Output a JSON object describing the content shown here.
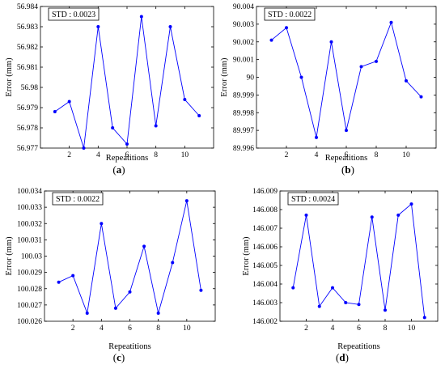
{
  "chart_data": [
    {
      "type": "line",
      "panel_label": "a",
      "annotation": "STD : 0.0023",
      "ylabel": "Error (mm)",
      "xlabel": "Repeatitions",
      "color": "#0000ff",
      "x": [
        1,
        2,
        3,
        4,
        5,
        6,
        7,
        8,
        9,
        10,
        11
      ],
      "y": [
        56.9788,
        56.9793,
        56.977,
        56.983,
        56.978,
        56.9772,
        56.9835,
        56.9781,
        56.983,
        56.9794,
        56.9786
      ],
      "xlim": [
        0,
        12
      ],
      "ylim": [
        56.977,
        56.984
      ],
      "xticks": [
        2,
        4,
        6,
        8,
        10
      ],
      "yticks": [
        56.977,
        56.978,
        56.979,
        56.98,
        56.981,
        56.982,
        56.983,
        56.984
      ],
      "ytick_labels": [
        "56.977",
        "56.978",
        "56.979",
        "56.98",
        "56.981",
        "56.982",
        "56.983",
        "56.984"
      ]
    },
    {
      "type": "line",
      "panel_label": "b",
      "annotation": "STD : 0.0022",
      "ylabel": "Error (mm)",
      "xlabel": "Repeatitions",
      "color": "#0000ff",
      "x": [
        1,
        2,
        3,
        4,
        5,
        6,
        7,
        8,
        9,
        10,
        11
      ],
      "y": [
        90.0021,
        90.0028,
        90.0,
        89.9966,
        90.002,
        89.997,
        90.0006,
        90.0009,
        90.0031,
        89.9998,
        89.9989
      ],
      "xlim": [
        0,
        12
      ],
      "ylim": [
        89.996,
        90.004
      ],
      "xticks": [
        2,
        4,
        6,
        8,
        10
      ],
      "yticks": [
        89.996,
        89.997,
        89.998,
        89.999,
        90.0,
        90.001,
        90.002,
        90.003,
        90.004
      ],
      "ytick_labels": [
        "89.996",
        "89.997",
        "89.998",
        "89.999",
        "90",
        "90.001",
        "90.002",
        "90.003",
        "90.004"
      ]
    },
    {
      "type": "line",
      "panel_label": "c",
      "annotation": "STD : 0.0022",
      "ylabel": "Error (mm)",
      "xlabel": "Repeatitions",
      "color": "#0000ff",
      "x": [
        1,
        2,
        3,
        4,
        5,
        6,
        7,
        8,
        9,
        10,
        11
      ],
      "y": [
        100.0284,
        100.0288,
        100.0265,
        100.032,
        100.0268,
        100.0278,
        100.0306,
        100.0265,
        100.0296,
        100.0334,
        100.0279
      ],
      "xlim": [
        0,
        12
      ],
      "ylim": [
        100.026,
        100.034
      ],
      "xticks": [
        2,
        4,
        6,
        8,
        10
      ],
      "yticks": [
        100.026,
        100.027,
        100.028,
        100.029,
        100.03,
        100.031,
        100.032,
        100.033,
        100.034
      ],
      "ytick_labels": [
        "100.026",
        "100.027",
        "100.028",
        "100.029",
        "100.03",
        "100.031",
        "100.032",
        "100.033",
        "100.034"
      ]
    },
    {
      "type": "line",
      "panel_label": "d",
      "annotation": "STD : 0.0024",
      "ylabel": "Error (mm)",
      "xlabel": "Repeatitions",
      "color": "#0000ff",
      "x": [
        1,
        2,
        3,
        4,
        5,
        6,
        7,
        8,
        9,
        10,
        11
      ],
      "y": [
        146.0038,
        146.0077,
        146.0028,
        146.0038,
        146.003,
        146.0029,
        146.0076,
        146.0026,
        146.0077,
        146.0083,
        146.0022
      ],
      "xlim": [
        0,
        12
      ],
      "ylim": [
        146.002,
        146.009
      ],
      "xticks": [
        2,
        4,
        6,
        8,
        10
      ],
      "yticks": [
        146.002,
        146.003,
        146.004,
        146.005,
        146.006,
        146.007,
        146.008,
        146.009
      ],
      "ytick_labels": [
        "146.002",
        "146.003",
        "146.004",
        "146.005",
        "146.006",
        "146.007",
        "146.008",
        "146.009"
      ]
    }
  ]
}
